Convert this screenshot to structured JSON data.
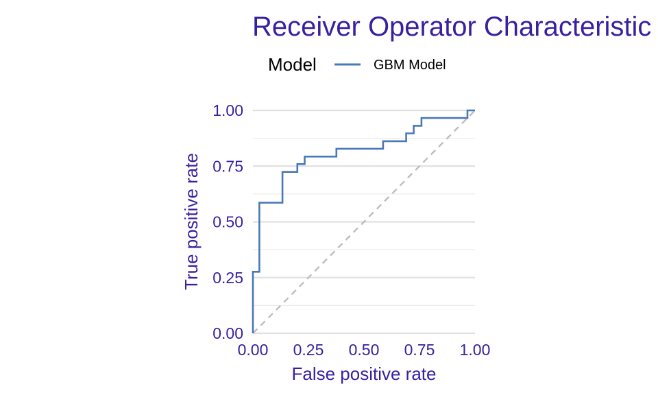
{
  "chart_data": {
    "type": "line",
    "title": "Receiver Operator Characteristic",
    "xlabel": "False positive rate",
    "ylabel": "True positive rate",
    "xlim": [
      0,
      1
    ],
    "ylim": [
      0,
      1
    ],
    "x_ticks": [
      "0.00",
      "0.25",
      "0.50",
      "0.75",
      "1.00"
    ],
    "y_ticks": [
      "0.00",
      "0.25",
      "0.50",
      "0.75",
      "1.00"
    ],
    "grid": "horizontal",
    "legend": {
      "title": "Model",
      "position": "top"
    },
    "reference_line": {
      "type": "diagonal",
      "style": "dashed",
      "color": "#bdbdbd"
    },
    "series": [
      {
        "name": "GBM Model",
        "color": "#4a78b8",
        "points": [
          [
            0.0,
            0.0
          ],
          [
            0.0,
            0.276
          ],
          [
            0.029,
            0.276
          ],
          [
            0.029,
            0.586
          ],
          [
            0.133,
            0.586
          ],
          [
            0.133,
            0.724
          ],
          [
            0.2,
            0.724
          ],
          [
            0.2,
            0.759
          ],
          [
            0.233,
            0.759
          ],
          [
            0.233,
            0.793
          ],
          [
            0.376,
            0.793
          ],
          [
            0.376,
            0.828
          ],
          [
            0.586,
            0.828
          ],
          [
            0.586,
            0.862
          ],
          [
            0.69,
            0.862
          ],
          [
            0.69,
            0.897
          ],
          [
            0.724,
            0.897
          ],
          [
            0.724,
            0.931
          ],
          [
            0.759,
            0.931
          ],
          [
            0.759,
            0.966
          ],
          [
            0.966,
            0.966
          ],
          [
            0.966,
            1.0
          ],
          [
            1.0,
            1.0
          ]
        ]
      }
    ]
  }
}
